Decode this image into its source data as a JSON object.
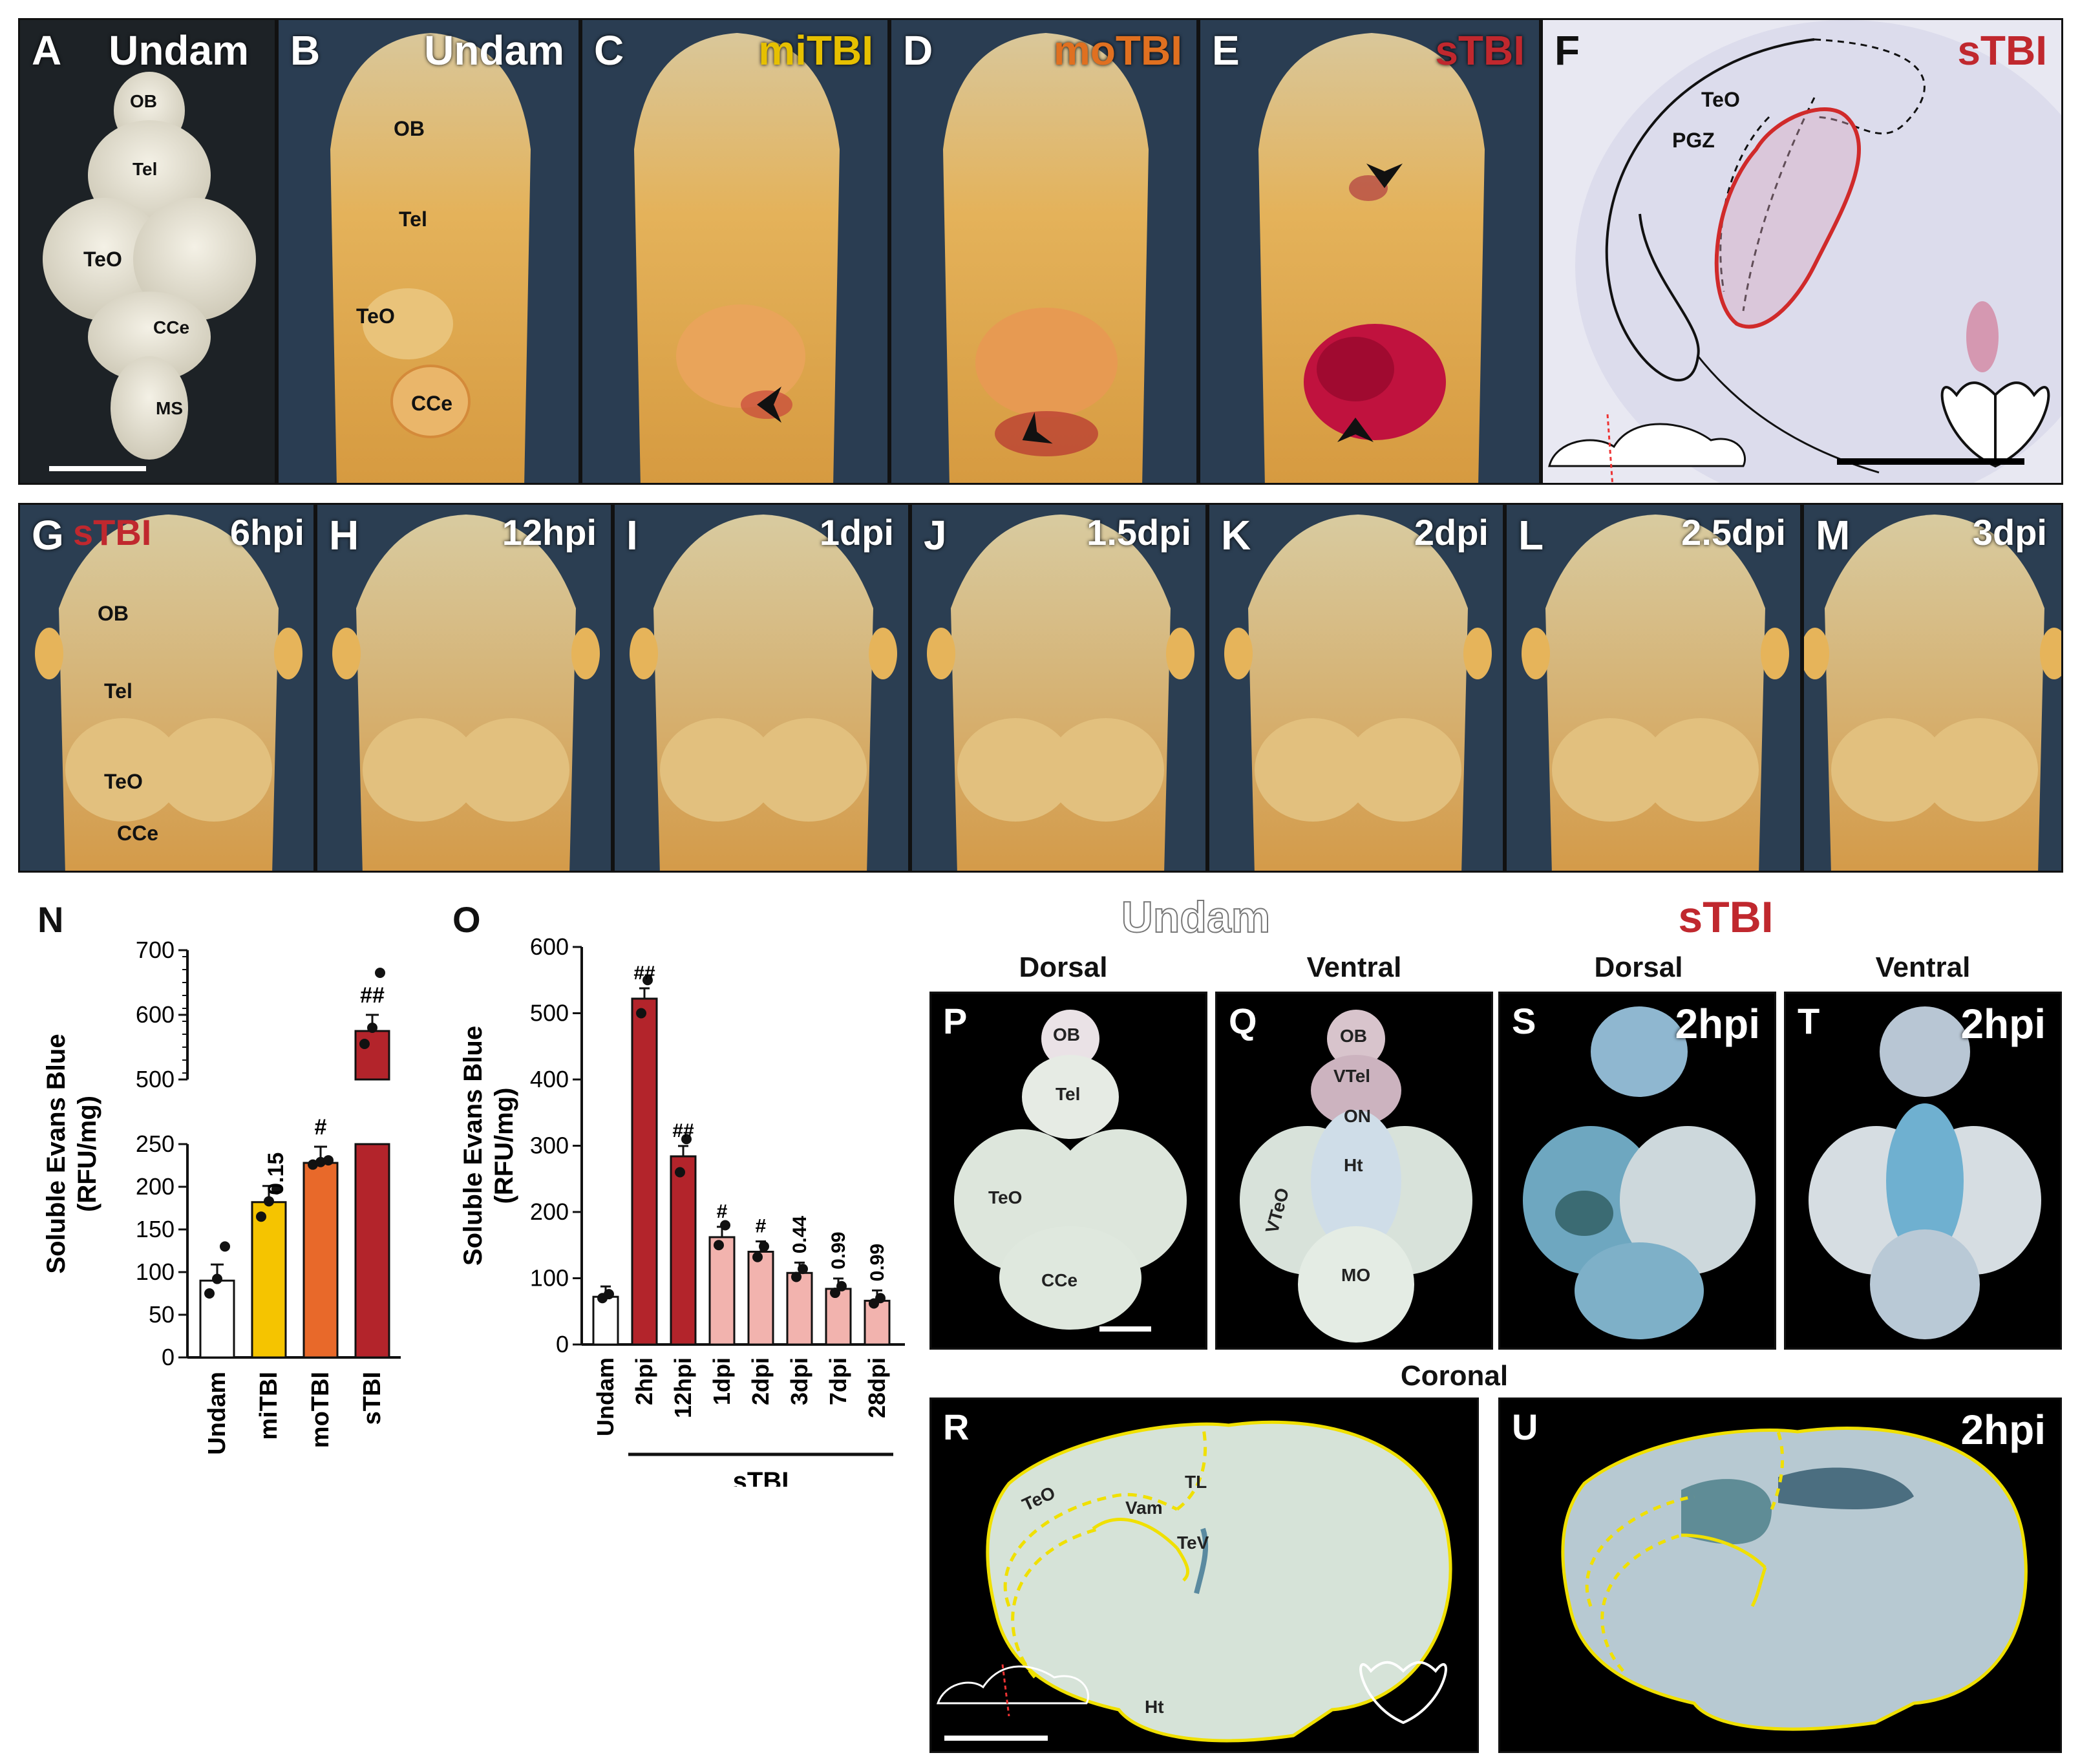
{
  "row1": {
    "A": {
      "label": "A",
      "title": "Undam",
      "anat": [
        "OB",
        "Tel",
        "TeO",
        "CCe",
        "MS"
      ]
    },
    "B": {
      "label": "B",
      "title": "Undam",
      "anat": [
        "OB",
        "Tel",
        "TeO",
        "CCe"
      ]
    },
    "C": {
      "label": "C",
      "title": "miTBI"
    },
    "D": {
      "label": "D",
      "title": "moTBI"
    },
    "E": {
      "label": "E",
      "title": "sTBI"
    },
    "F": {
      "label": "F",
      "title": "sTBI",
      "anat": [
        "TeO",
        "PGZ"
      ]
    }
  },
  "row2": [
    {
      "label": "G",
      "title": "6hpi",
      "prefix": "sTBI",
      "anat": [
        "OB",
        "Tel",
        "TeO",
        "CCe"
      ]
    },
    {
      "label": "H",
      "title": "12hpi"
    },
    {
      "label": "I",
      "title": "1dpi"
    },
    {
      "label": "J",
      "title": "1.5dpi"
    },
    {
      "label": "K",
      "title": "2dpi"
    },
    {
      "label": "L",
      "title": "2.5dpi"
    },
    {
      "label": "M",
      "title": "3dpi"
    }
  ],
  "colors": {
    "undam": "#ffffff",
    "miTBI": "#f5c400",
    "moTBI": "#e8692a",
    "sTBI": "#b3242b",
    "sTBI_light": "#f2b3ae",
    "title_miTBI": "#e6c000",
    "title_moTBI": "#e07020",
    "title_sTBI": "#c0282e"
  },
  "chart_data": [
    {
      "panel": "N",
      "type": "bar",
      "ylabel": "Soluble Evans Blue (RFU/mg)",
      "categories": [
        "Undam",
        "miTBI",
        "moTBI",
        "sTBI"
      ],
      "values": [
        90,
        182,
        228,
        575
      ],
      "annotations": [
        "",
        "0.15",
        "#",
        "##"
      ],
      "points": [
        [
          75,
          92,
          130
        ],
        [
          165,
          183,
          197
        ],
        [
          226,
          229,
          231
        ],
        [
          555,
          580,
          665
        ]
      ],
      "ylim": [
        0,
        700
      ],
      "axis_break": [
        250,
        500
      ],
      "ticks_lower": [
        0,
        50,
        100,
        150,
        200,
        250
      ],
      "ticks_upper": [
        500,
        600,
        700
      ]
    },
    {
      "panel": "O",
      "type": "bar",
      "ylabel": "Soluble Evans Blue (RFU/mg)",
      "categories": [
        "Undam",
        "2hpi",
        "12hpi",
        "1dpi",
        "2dpi",
        "3dpi",
        "7dpi",
        "28dpi"
      ],
      "values": [
        72,
        522,
        284,
        162,
        140,
        108,
        84,
        66
      ],
      "annotations": [
        "",
        "##",
        "##",
        "#",
        "#",
        "0.44",
        "0.99",
        "0.99"
      ],
      "points": [
        [
          70,
          76
        ],
        [
          500,
          550
        ],
        [
          260,
          310
        ],
        [
          150,
          180
        ],
        [
          132,
          148
        ],
        [
          102,
          114
        ],
        [
          78,
          88
        ],
        [
          62,
          70
        ]
      ],
      "ylim": [
        0,
        600
      ],
      "ticks": [
        0,
        100,
        200,
        300,
        400,
        500,
        600
      ],
      "group_label": "sTBI"
    }
  ],
  "bottom": {
    "labels": {
      "N": "N",
      "O": "O",
      "P": "P",
      "Q": "Q",
      "S": "S",
      "T": "T",
      "R": "R",
      "U": "U"
    },
    "head_undam": "Undam",
    "head_stbi": "sTBI",
    "dorsal": "Dorsal",
    "ventral": "Ventral",
    "coronal": "Coronal",
    "S_title": "2hpi",
    "T_title": "2hpi",
    "U_title": "2hpi",
    "P_anat": [
      "OB",
      "Tel",
      "TeO",
      "CCe"
    ],
    "Q_anat": [
      "OB",
      "VTel",
      "ON",
      "Ht",
      "VTeO",
      "MO"
    ],
    "R_anat": [
      "TeO",
      "TL",
      "Vam",
      "TeV",
      "Ht"
    ]
  }
}
